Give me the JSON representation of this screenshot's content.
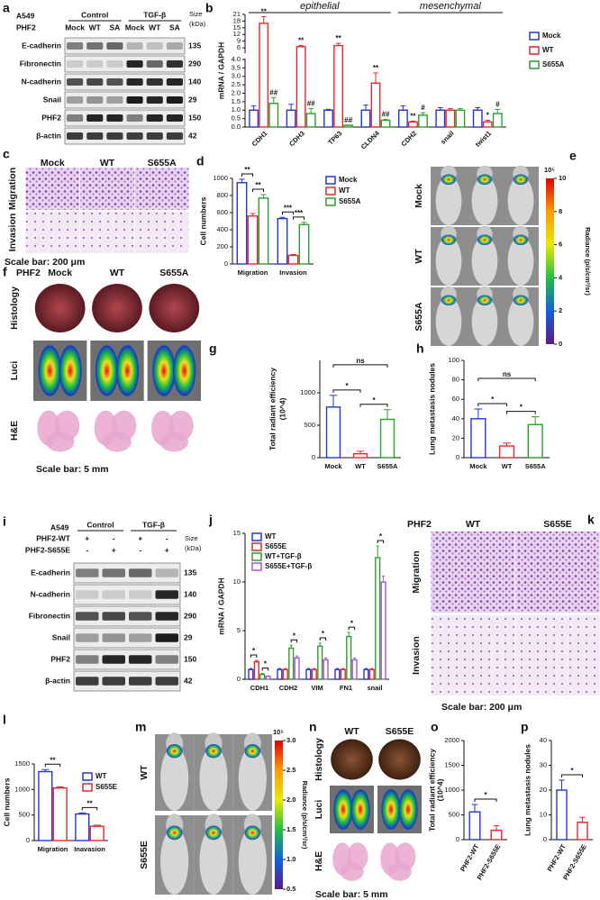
{
  "blots": [
    {
      "panel": "a",
      "cell_line": "A549",
      "protein": "PHF2",
      "groups": [
        "Control",
        "TGF-β"
      ],
      "lanes": [
        "Mock",
        "WT",
        "SA",
        "Mock",
        "WT",
        "SA"
      ],
      "size_header": [
        "Size",
        "(kDa)"
      ],
      "rows": [
        {
          "name": "E-cadherin",
          "size": 135
        },
        {
          "name": "Fibronectin",
          "size": 290
        },
        {
          "name": "N-cadherin",
          "size": 140
        },
        {
          "name": "Snail",
          "size": 29
        },
        {
          "name": "PHF2",
          "size": 150
        },
        {
          "name": "β-actin",
          "size": 42
        }
      ]
    },
    {
      "panel": "i",
      "cell_line": "A549",
      "groups": [
        "Control",
        "TGF-β"
      ],
      "conditions": [
        {
          "name": "PHF2-WT",
          "signs": [
            "+",
            "-",
            "+",
            "-"
          ]
        },
        {
          "name": "PHF2-S655E",
          "signs": [
            "-",
            "+",
            "-",
            "+"
          ]
        }
      ],
      "size_header": [
        "Size",
        "(kDa)"
      ],
      "rows": [
        {
          "name": "E-cadherin",
          "size": 135
        },
        {
          "name": "N-cadherin",
          "size": 140
        },
        {
          "name": "Fibronectin",
          "size": 290
        },
        {
          "name": "Snail",
          "size": 29
        },
        {
          "name": "PHF2",
          "size": 150
        },
        {
          "name": "β-actin",
          "size": 42
        }
      ]
    }
  ],
  "images": [
    {
      "panel": "c",
      "columns": [
        "Mock",
        "WT",
        "S655A"
      ],
      "rows": [
        "Migration",
        "Invasion"
      ],
      "scale_bar": "Scale bar: 200 μm"
    },
    {
      "panel": "e",
      "rows": [
        "Mock",
        "WT",
        "S655A"
      ],
      "colorbar": {
        "label": "Radiance (p/s/cm²/sr)",
        "exponent": "10⁵",
        "lim": [
          0,
          10
        ],
        "ticks": [
          0,
          2,
          4,
          6,
          8,
          10
        ]
      }
    },
    {
      "panel": "f",
      "protein": "PHF2",
      "columns": [
        "Mock",
        "WT",
        "S655A"
      ],
      "rows": [
        "Histology",
        "Luci",
        "H&E"
      ],
      "scale_bar": "Scale bar: 5 mm"
    },
    {
      "panel": "k",
      "protein": "PHF2",
      "columns": [
        "WT",
        "S655E"
      ],
      "rows": [
        "Migration",
        "Invasion"
      ],
      "scale_bar": "Scale bar: 200 μm"
    },
    {
      "panel": "m",
      "rows": [
        "WT",
        "S655E"
      ],
      "colorbar": {
        "label": "Radiance (p/s/cm²/sr)",
        "exponent": "10⁵",
        "lim": [
          0.5,
          3
        ],
        "ticks": [
          0.5,
          {
            "value": 1,
            "label": "1.0"
          },
          1.5,
          {
            "value": 2,
            "label": "2.0"
          },
          2.5,
          {
            "value": 3,
            "label": "3.0"
          }
        ]
      }
    },
    {
      "panel": "n",
      "columns": [
        "WT",
        "S655E"
      ],
      "rows": [
        "Histology",
        "Luci",
        "H&E"
      ],
      "scale_bar": "Scale bar: 5 mm"
    }
  ],
  "chart_data": [
    {
      "panel": "b",
      "type": "bar",
      "ylabel": "mRNA / GAPDH",
      "group_labels": [
        "epithelial",
        "mesenchymal"
      ],
      "categories": [
        "CDH1",
        "CDH3",
        "TP63",
        "CLDN4",
        "CDH2",
        "snail",
        "twist1"
      ],
      "series": [
        {
          "name": "Mock",
          "color": "#2233dd",
          "values": [
            1,
            1,
            1,
            1,
            1,
            1,
            1
          ],
          "errors": [
            0.25,
            0.35,
            0.05,
            0.3,
            0.25,
            0.15,
            0.15
          ]
        },
        {
          "name": "WT",
          "color": "#e8262b",
          "values": [
            17,
            6.5,
            7,
            2.6,
            0.3,
            1,
            0.3
          ],
          "errors": [
            3,
            0.5,
            1,
            0.6,
            0.05,
            0.1,
            0.1
          ],
          "significance": [
            "**",
            "**",
            "**",
            "**",
            "**",
            null,
            "*"
          ]
        },
        {
          "name": "S655A",
          "color": "#2ca02c",
          "values": [
            1.4,
            0.8,
            0.1,
            0.4,
            0.7,
            1,
            0.8
          ],
          "errors": [
            0.35,
            0.3,
            0.02,
            0.05,
            0.15,
            0.1,
            0.25
          ],
          "significance": [
            "##",
            "##",
            "##",
            "##",
            "#",
            null,
            "#"
          ]
        }
      ],
      "ylim": [
        0,
        21
      ],
      "ybreak": 4,
      "yticks": [
        {
          "value": 0,
          "label": "0.0"
        },
        0.5,
        {
          "value": 1,
          "label": "1.0"
        },
        1.5,
        {
          "value": 2,
          "label": "2.0"
        },
        2.5,
        {
          "value": 3,
          "label": "3.0"
        },
        3.5,
        {
          "value": 4,
          "label": "4.0"
        },
        6,
        9,
        12,
        15,
        18,
        21
      ],
      "legend": "right"
    },
    {
      "panel": "d",
      "type": "bar",
      "ylabel": "Cell numbers",
      "categories": [
        "Migration",
        "Invasion"
      ],
      "series": [
        {
          "name": "Mock",
          "color": "#2233dd",
          "values": [
            950,
            530
          ],
          "errors": [
            40,
            15
          ]
        },
        {
          "name": "WT",
          "color": "#e8262b",
          "values": [
            560,
            100
          ],
          "errors": [
            30,
            10
          ]
        },
        {
          "name": "S655A",
          "color": "#2ca02c",
          "values": [
            770,
            460
          ],
          "errors": [
            40,
            25
          ]
        }
      ],
      "ylim": [
        0,
        1000
      ],
      "yticks": [
        0,
        200,
        400,
        600,
        800,
        1000
      ],
      "legend": "upper right",
      "comparisons": [
        {
          "category": "Migration",
          "series": [
            "Mock",
            "WT"
          ],
          "label": "**"
        },
        {
          "category": "Migration",
          "series": [
            "WT",
            "S655A"
          ],
          "label": "**"
        },
        {
          "category": "Invasion",
          "series": [
            "Mock",
            "WT"
          ],
          "label": "***"
        },
        {
          "category": "Invasion",
          "series": [
            "WT",
            "S655A"
          ],
          "label": "***"
        }
      ]
    },
    {
      "panel": "g",
      "type": "bar",
      "ylabel": [
        "Total radiant efficiency",
        "(10^4)"
      ],
      "categories": [
        "Mock",
        "WT",
        "S655A"
      ],
      "colors": [
        "#2233dd",
        "#e8262b",
        "#2ca02c"
      ],
      "values": [
        780,
        60,
        590
      ],
      "errors": [
        180,
        40,
        150
      ],
      "ylim": [
        0,
        1500
      ],
      "yticks": [
        0,
        500,
        1000
      ],
      "comparisons": [
        {
          "categories": [
            "Mock",
            "S655A"
          ],
          "label": "ns"
        },
        {
          "categories": [
            "Mock",
            "WT"
          ],
          "label": "*"
        },
        {
          "categories": [
            "WT",
            "S655A"
          ],
          "label": "*"
        }
      ]
    },
    {
      "panel": "h",
      "type": "bar",
      "ylabel": "Lung metastasis nodules",
      "categories": [
        "Mock",
        "WT",
        "S655A"
      ],
      "colors": [
        "#2233dd",
        "#e8262b",
        "#2ca02c"
      ],
      "values": [
        40,
        12,
        34
      ],
      "errors": [
        10,
        3,
        8
      ],
      "ylim": [
        0,
        100
      ],
      "yticks": [
        0,
        20,
        40,
        60,
        80,
        100
      ],
      "comparisons": [
        {
          "categories": [
            "Mock",
            "S655A"
          ],
          "label": "ns"
        },
        {
          "categories": [
            "Mock",
            "WT"
          ],
          "label": "*"
        },
        {
          "categories": [
            "WT",
            "S655A"
          ],
          "label": "*"
        }
      ]
    },
    {
      "panel": "j",
      "type": "bar",
      "ylabel": "mRNA / GAPDH",
      "categories": [
        "CDH1",
        "CDH2",
        "VIM",
        "FN1",
        "snail"
      ],
      "series": [
        {
          "name": "WT",
          "color": "#2233dd",
          "values": [
            1,
            1,
            1,
            1,
            1
          ],
          "errors": [
            0.1,
            0.1,
            0.1,
            0.1,
            0.1
          ]
        },
        {
          "name": "S655E",
          "color": "#e8262b",
          "values": [
            1.8,
            1,
            1,
            1,
            1
          ],
          "errors": [
            0.15,
            0.1,
            0.1,
            0.1,
            0.1
          ]
        },
        {
          "name": "WT+TGF-β",
          "color": "#2ca02c",
          "values": [
            0.5,
            3.2,
            3.4,
            4.4,
            12.5
          ],
          "errors": [
            0.1,
            0.3,
            0.3,
            0.4,
            1.2
          ]
        },
        {
          "name": "S655E+TGF-β",
          "color": "#a855d6",
          "values": [
            0.3,
            2.2,
            2,
            2,
            10
          ],
          "errors": [
            0.05,
            0.2,
            0.2,
            0.2,
            0.6
          ]
        }
      ],
      "ylim": [
        0,
        15
      ],
      "yticks": [
        0,
        5,
        10,
        15
      ],
      "legend": "upper left",
      "comparisons": [
        {
          "category": "CDH1",
          "series": [
            "WT",
            "S655E"
          ],
          "label": "*"
        },
        {
          "category": "CDH1",
          "series": [
            "WT+TGF-β",
            "S655E+TGF-β"
          ],
          "label": "*"
        },
        {
          "category": "CDH2",
          "series": [
            "WT+TGF-β",
            "S655E+TGF-β"
          ],
          "label": "*"
        },
        {
          "category": "VIM",
          "series": [
            "WT+TGF-β",
            "S655E+TGF-β"
          ],
          "label": "*"
        },
        {
          "category": "FN1",
          "series": [
            "WT+TGF-β",
            "S655E+TGF-β"
          ],
          "label": "*"
        },
        {
          "category": "snail",
          "series": [
            "WT+TGF-β",
            "S655E+TGF-β"
          ],
          "label": "*"
        }
      ]
    },
    {
      "panel": "l",
      "type": "bar",
      "ylabel": "Cell numbers",
      "categories": [
        "Migration",
        "Inavasion"
      ],
      "series": [
        {
          "name": "WT",
          "color": "#2233dd",
          "values": [
            1350,
            520
          ],
          "errors": [
            40,
            20
          ]
        },
        {
          "name": "S655E",
          "color": "#e8262b",
          "values": [
            1030,
            280
          ],
          "errors": [
            20,
            20
          ]
        }
      ],
      "ylim": [
        0,
        1500
      ],
      "yticks": [
        0,
        500,
        1000,
        1500
      ],
      "legend": "right",
      "comparisons": [
        {
          "category": "Migration",
          "series": [
            "WT",
            "S655E"
          ],
          "label": "**"
        },
        {
          "category": "Inavasion",
          "series": [
            "WT",
            "S655E"
          ],
          "label": "**"
        }
      ]
    },
    {
      "panel": "o",
      "type": "bar",
      "ylabel": [
        "Total radiant efficiency",
        "(10^4)"
      ],
      "categories": [
        "PHF2-WT",
        "PHF2-S655E"
      ],
      "colors": [
        "#2233dd",
        "#e8262b"
      ],
      "values": [
        560,
        190
      ],
      "errors": [
        150,
        90
      ],
      "ylim": [
        0,
        2000
      ],
      "yticks": [
        0,
        500,
        1000,
        1500,
        2000
      ],
      "comparisons": [
        {
          "categories": [
            "PHF2-WT",
            "PHF2-S655E"
          ],
          "label": "*"
        }
      ]
    },
    {
      "panel": "p",
      "type": "bar",
      "ylabel": "Lung metastasis nodules",
      "categories": [
        "PHF2-WT",
        "PHF2-S655E"
      ],
      "colors": [
        "#2233dd",
        "#e8262b"
      ],
      "values": [
        20,
        7
      ],
      "errors": [
        4,
        2
      ],
      "ylim": [
        0,
        40
      ],
      "yticks": [
        0,
        10,
        20,
        30,
        40
      ],
      "comparisons": [
        {
          "categories": [
            "PHF2-WT",
            "PHF2-S655E"
          ],
          "label": "*"
        }
      ]
    }
  ]
}
